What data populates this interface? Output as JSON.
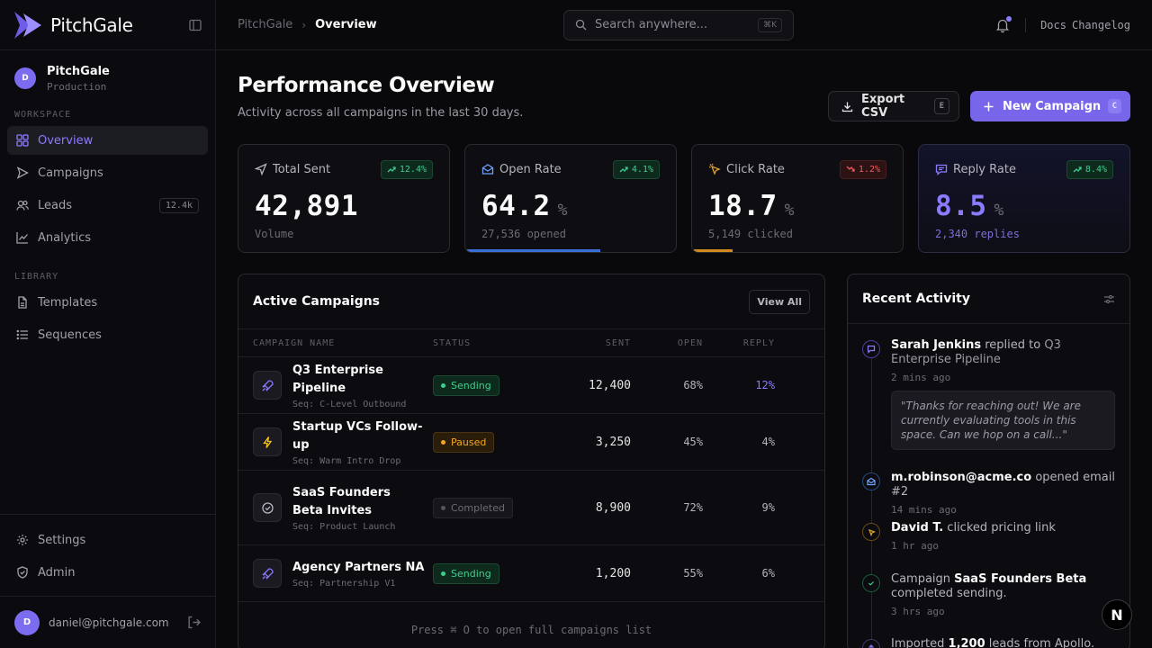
{
  "brand": {
    "name": "PitchGale"
  },
  "workspace": {
    "avatar": "D",
    "name": "PitchGale",
    "env": "Production"
  },
  "sidebar": {
    "workspace_label": "WORKSPACE",
    "library_label": "LIBRARY",
    "workspace_items": [
      {
        "label": "Overview",
        "icon": "grid-icon",
        "active": true
      },
      {
        "label": "Campaigns",
        "icon": "send-icon"
      },
      {
        "label": "Leads",
        "icon": "users-icon",
        "badge": "12.4k"
      },
      {
        "label": "Analytics",
        "icon": "chart-line-icon"
      }
    ],
    "library_items": [
      {
        "label": "Templates",
        "icon": "file-icon"
      },
      {
        "label": "Sequences",
        "icon": "list-icon"
      }
    ],
    "bottom_items": [
      {
        "label": "Settings",
        "icon": "gear-icon"
      },
      {
        "label": "Admin",
        "icon": "shield-icon"
      }
    ],
    "user": {
      "avatar": "D",
      "email": "daniel@pitchgale.com"
    }
  },
  "topbar": {
    "breadcrumb": [
      "PitchGale",
      "Overview"
    ],
    "search_placeholder": "Search anywhere...",
    "search_shortcut": "⌘K",
    "links": [
      "Docs",
      "Changelog"
    ]
  },
  "header": {
    "title": "Performance Overview",
    "subtitle": "Activity across all campaigns in the last 30 days.",
    "export_label": "Export CSV",
    "export_key": "E",
    "new_label": "New Campaign",
    "new_key": "C"
  },
  "stats": [
    {
      "label": "Total Sent",
      "delta": "12.4%",
      "trend": "up",
      "value": "42,891",
      "unit": "",
      "foot": "Volume",
      "progress": 0
    },
    {
      "label": "Open Rate",
      "delta": "4.1%",
      "trend": "up",
      "value": "64.2",
      "unit": "%",
      "foot": "27,536 opened",
      "progress": 0.642,
      "bar_color": "#3b6fd8"
    },
    {
      "label": "Click Rate",
      "delta": "1.2%",
      "trend": "down",
      "value": "18.7",
      "unit": "%",
      "foot": "5,149 clicked",
      "progress": 0.187,
      "bar_color": "#d08a1e"
    },
    {
      "label": "Reply Rate",
      "delta": "8.4%",
      "trend": "up",
      "value": "8.5",
      "unit": "%",
      "foot": "2,340 replies",
      "progress": 0
    }
  ],
  "campaigns": {
    "title": "Active Campaigns",
    "view_all": "View All",
    "columns": [
      "CAMPAIGN NAME",
      "STATUS",
      "SENT",
      "OPEN",
      "REPLY"
    ],
    "rows": [
      {
        "icon": "rocket-icon",
        "name": "Q3 Enterprise Pipeline",
        "seq": "Seq: C-Level Outbound",
        "status": "Sending",
        "sent": "12,400",
        "open": "68%",
        "reply": "12%"
      },
      {
        "icon": "bolt-icon",
        "name": "Startup VCs Follow-up",
        "seq": "Seq: Warm Intro Drop",
        "status": "Paused",
        "sent": "3,250",
        "open": "45%",
        "reply": "4%"
      },
      {
        "icon": "check-circle-icon",
        "name": "SaaS Founders Beta Invites",
        "seq": "Seq: Product Launch",
        "status": "Completed",
        "sent": "8,900",
        "open": "72%",
        "reply": "9%"
      },
      {
        "icon": "rocket-icon",
        "name": "Agency Partners NA",
        "seq": "Seq: Partnership V1",
        "status": "Sending",
        "sent": "1,200",
        "open": "55%",
        "reply": "6%"
      }
    ],
    "footer": "Press ⌘ O to open full campaigns list"
  },
  "activity": {
    "title": "Recent Activity",
    "items": [
      {
        "actor": "Sarah Jenkins",
        "action": " replied to ",
        "target": "Q3 Enterprise Pipeline",
        "time": "2 mins ago",
        "quote": "\"Thanks for reaching out! We are currently evaluating tools in this space. Can we hop on a call...\""
      },
      {
        "actor": "m.robinson@acme.co",
        "action": " opened email #2",
        "time": "14 mins ago"
      },
      {
        "actor": "David T.",
        "action": " clicked pricing link",
        "time": "1 hr ago"
      },
      {
        "pre": "Campaign ",
        "actor": "SaaS Founders Beta",
        "action": " completed sending.",
        "time": "3 hrs ago"
      },
      {
        "pre": "Imported ",
        "actor": "1,200",
        "action": " leads from Apollo."
      }
    ]
  },
  "colors": {
    "accent": "#8a7cff",
    "success": "#3ecf8e",
    "warning": "#f5a623",
    "danger": "#f25c5c"
  }
}
